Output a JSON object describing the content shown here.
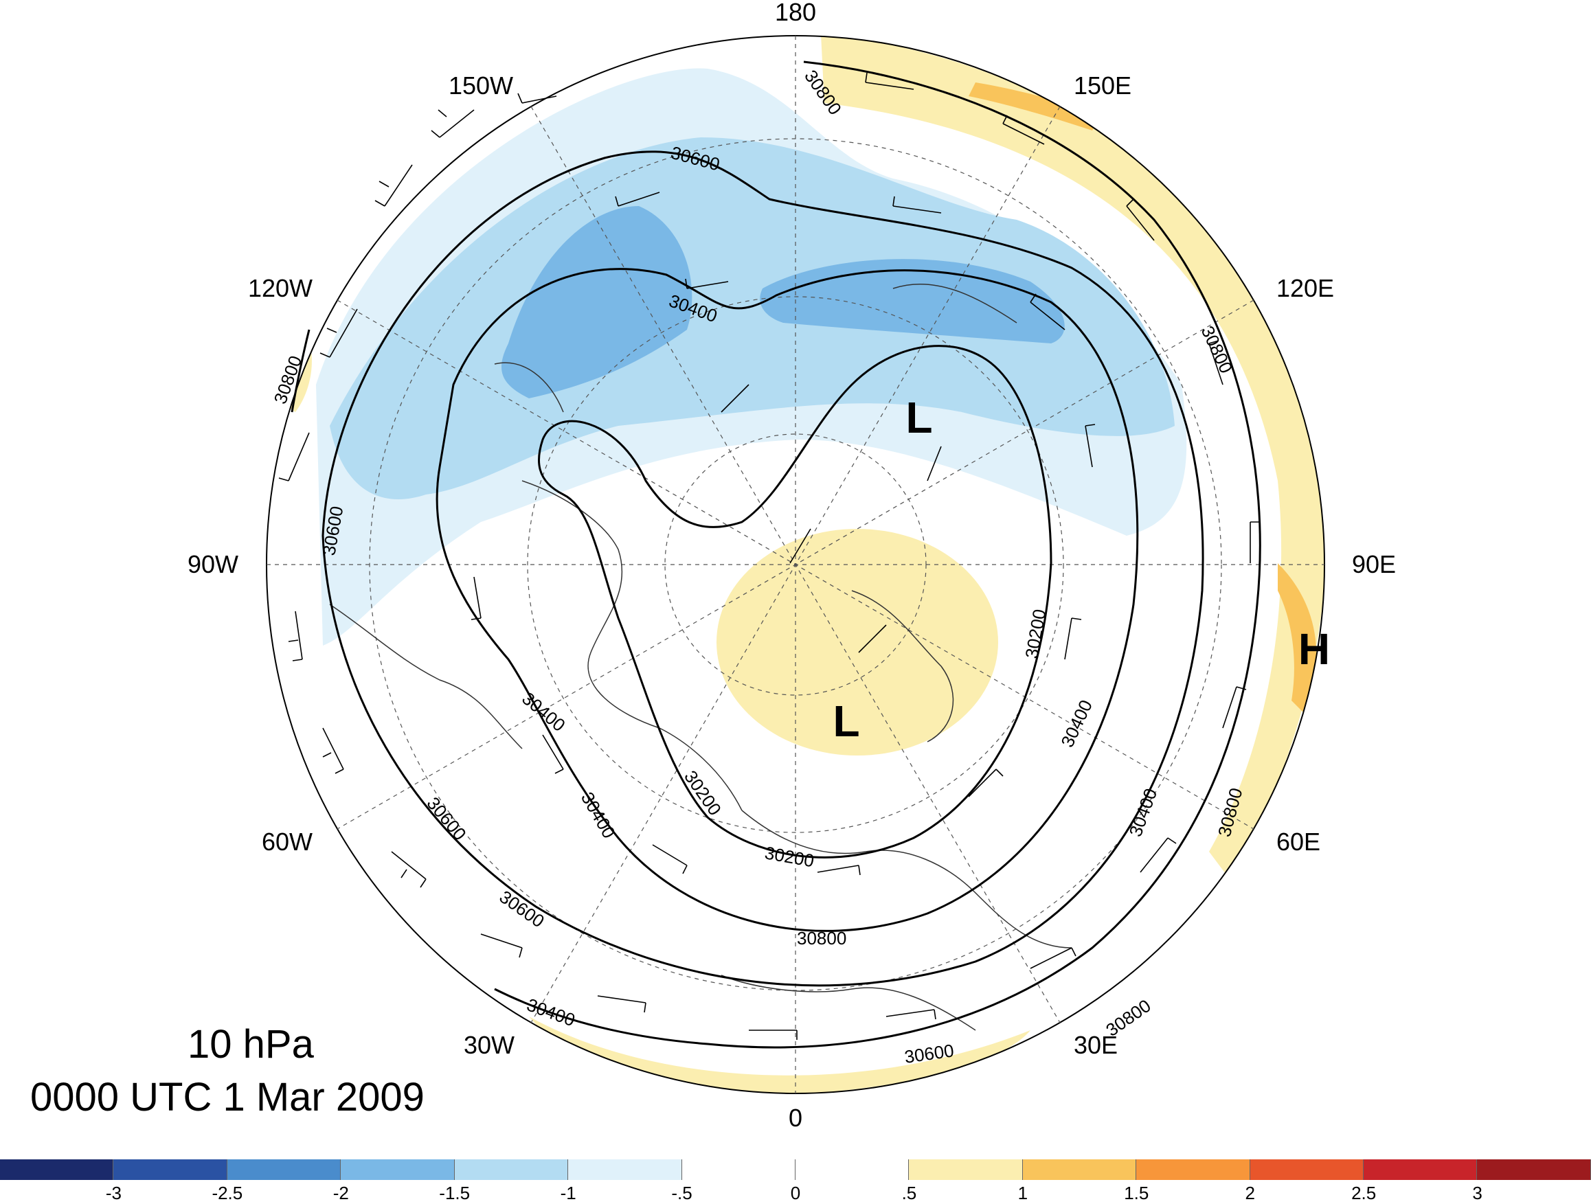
{
  "title": {
    "level": "10 hPa",
    "time": "0000 UTC 1 Mar 2009"
  },
  "longitude_labels": [
    "180",
    "150E",
    "120E",
    "90E",
    "60E",
    "30E",
    "0",
    "30W",
    "60W",
    "90W",
    "120W",
    "150W"
  ],
  "contour_labels": [
    "30800",
    "30800",
    "30600",
    "30400",
    "30800",
    "30600",
    "30400",
    "30200",
    "30200",
    "30400",
    "30400",
    "30600",
    "30800",
    "30200",
    "30400",
    "30600",
    "30800",
    "30400",
    "30600",
    "30800"
  ],
  "markers": [
    "L",
    "L",
    "H"
  ],
  "colorbar": {
    "colors": [
      "#1b2a6b",
      "#2a52a3",
      "#4a8ccc",
      "#7ab8e6",
      "#b3dcf2",
      "#e0f1fa",
      "#ffffff",
      "#ffffff",
      "#fbeeb0",
      "#f9c45b",
      "#f7963a",
      "#e8562b",
      "#c8242a",
      "#9c1b1e"
    ],
    "ticks": [
      "-3",
      "-2.5",
      "-2",
      "-1.5",
      "-1",
      "-.5",
      "0",
      ".5",
      "1",
      "1.5",
      "2",
      "2.5",
      "3"
    ]
  }
}
